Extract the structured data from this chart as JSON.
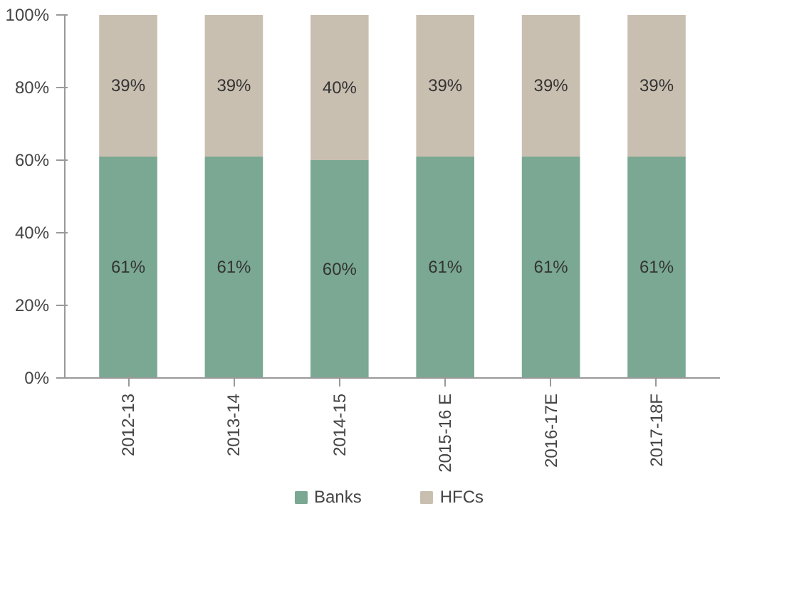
{
  "chart_data": {
    "type": "bar",
    "stacked": true,
    "categories": [
      "2012-13",
      "2013-14",
      "2014-15",
      "2015-16 E",
      "2016-17E",
      "2017-18F"
    ],
    "series": [
      {
        "name": "Banks",
        "color": "#7aa893",
        "values": [
          61,
          61,
          60,
          61,
          61,
          61
        ],
        "value_labels": [
          "61%",
          "61%",
          "60%",
          "61%",
          "61%",
          "61%"
        ]
      },
      {
        "name": "HFCs",
        "color": "#c9bfb1",
        "values": [
          39,
          39,
          40,
          39,
          39,
          39
        ],
        "value_labels": [
          "39%",
          "39%",
          "40%",
          "39%",
          "39%",
          "39%"
        ]
      }
    ],
    "ylim": [
      0,
      100
    ],
    "yticks": [
      {
        "value": 0,
        "label": "0%"
      },
      {
        "value": 20,
        "label": "20%"
      },
      {
        "value": 40,
        "label": "40%"
      },
      {
        "value": 60,
        "label": "60%"
      },
      {
        "value": 80,
        "label": "80%"
      },
      {
        "value": 100,
        "label": "100%"
      }
    ],
    "grid": false,
    "legend": "bottom"
  }
}
